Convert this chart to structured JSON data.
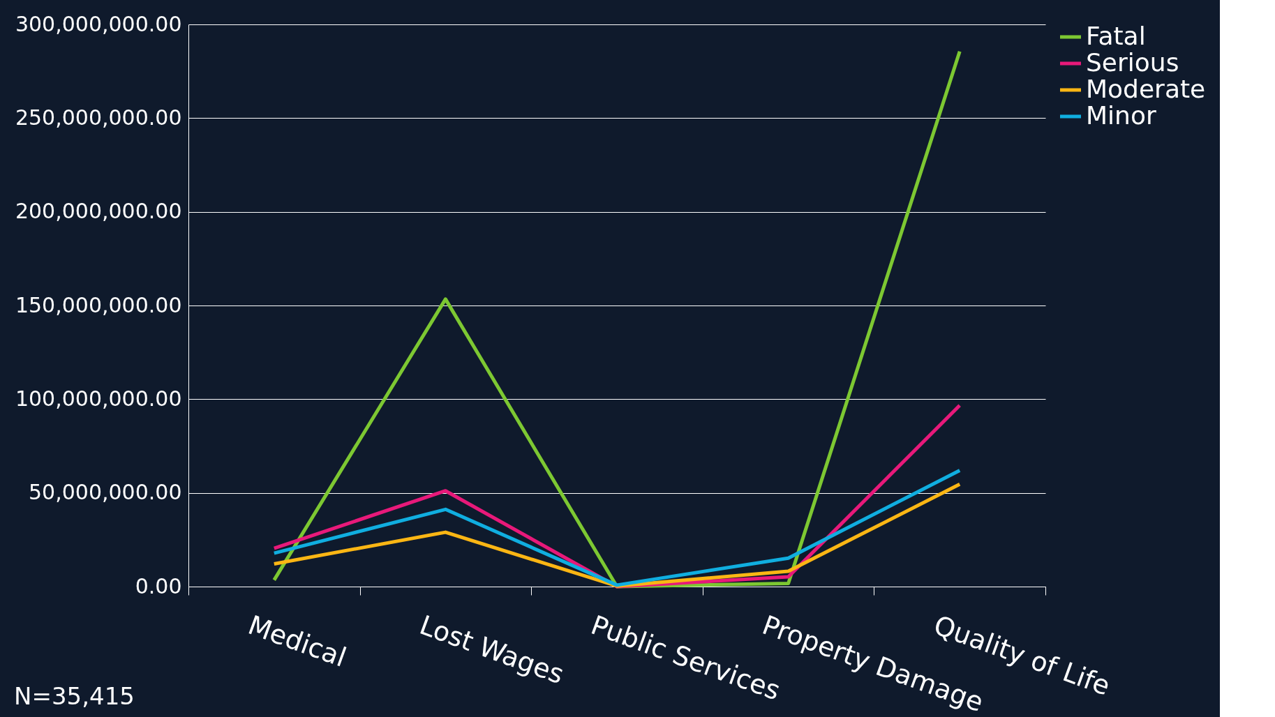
{
  "chart_data": {
    "type": "line",
    "categories": [
      "Medical",
      "Lost Wages",
      "Public Services",
      "Property Damage",
      "Quality of Life"
    ],
    "series": [
      {
        "name": "Fatal",
        "color": "#7dc832",
        "values": [
          3500000,
          153400000,
          0,
          1700000,
          285600000
        ]
      },
      {
        "name": "Serious",
        "color": "#e8197a",
        "values": [
          20400000,
          51100000,
          0,
          5200000,
          96700000
        ]
      },
      {
        "name": "Moderate",
        "color": "#fbb614",
        "values": [
          12100000,
          29000000,
          300000,
          8200000,
          54600000
        ]
      },
      {
        "name": "Minor",
        "color": "#10aee0",
        "values": [
          17800000,
          41200000,
          800000,
          15200000,
          62000000
        ]
      }
    ],
    "ylim": [
      0,
      300000000
    ],
    "yticks": [
      {
        "value": 0,
        "label": "0.00"
      },
      {
        "value": 50000000,
        "label": "50,000,000.00"
      },
      {
        "value": 100000000,
        "label": "100,000,000.00"
      },
      {
        "value": 150000000,
        "label": "150,000,000.00"
      },
      {
        "value": 200000000,
        "label": "200,000,000.00"
      },
      {
        "value": 250000000,
        "label": "250,000,000.00"
      },
      {
        "value": 300000000,
        "label": "300,000,000.00"
      }
    ],
    "grid": "y",
    "legend": "right",
    "marker": "none",
    "line_style": "solid",
    "annotations": [
      "N=35,415"
    ]
  }
}
